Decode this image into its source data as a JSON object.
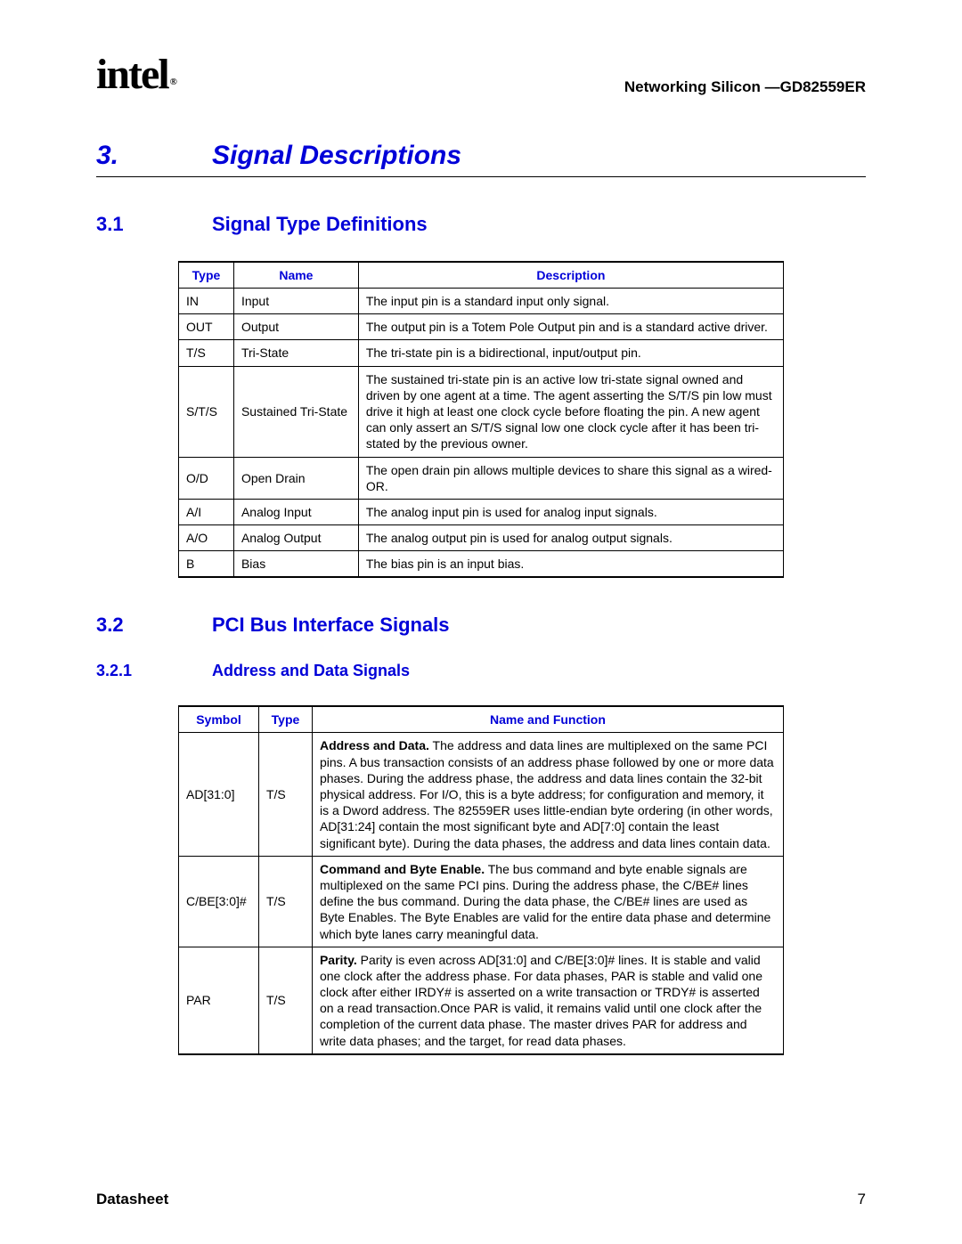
{
  "header": {
    "logo_text": "intel",
    "logo_reg": "®",
    "doc_title": "Networking Silicon —GD82559ER"
  },
  "chapter": {
    "num": "3.",
    "title": "Signal Descriptions"
  },
  "section1": {
    "num": "3.1",
    "title": "Signal Type Definitions"
  },
  "section2": {
    "num": "3.2",
    "title": "PCI Bus Interface Signals"
  },
  "subsection21": {
    "num": "3.2.1",
    "title": "Address and Data Signals"
  },
  "table1": {
    "headers": [
      "Type",
      "Name",
      "Description"
    ],
    "rows": [
      [
        "IN",
        "Input",
        "The input pin is a standard input only signal."
      ],
      [
        "OUT",
        "Output",
        "The output pin is a Totem Pole Output pin and is a standard active driver."
      ],
      [
        "T/S",
        "Tri-State",
        "The tri-state pin is a bidirectional, input/output pin."
      ],
      [
        "S/T/S",
        "Sustained Tri-State",
        "The sustained tri-state pin is an active low tri-state signal owned and driven by one agent at a time. The agent asserting the S/T/S pin low must drive it high at least one clock cycle before floating the pin. A new agent can only assert an S/T/S signal low one clock cycle after it has been tri-stated by the previous owner."
      ],
      [
        "O/D",
        "Open Drain",
        "The open drain pin allows multiple devices to share this signal as a wired-OR."
      ],
      [
        "A/I",
        "Analog Input",
        "The analog input pin is used for analog input signals."
      ],
      [
        "A/O",
        "Analog Output",
        "The analog output pin is used for analog output signals."
      ],
      [
        "B",
        "Bias",
        "The bias pin is an input bias."
      ]
    ]
  },
  "table2": {
    "headers": [
      "Symbol",
      "Type",
      "Name and Function"
    ],
    "rows": [
      {
        "symbol": "AD[31:0]",
        "type": "T/S",
        "bold": "Address and Data.",
        "text": " The address and data lines are multiplexed on the same PCI pins. A bus transaction consists of an address phase followed by one or more data phases. During the address phase, the address and data lines contain the 32-bit physical address. For I/O, this is a byte address; for configuration and memory, it is a Dword address. The 82559ER uses little-endian byte ordering (in other words, AD[31:24] contain the most significant byte and AD[7:0] contain the least significant byte). During the data phases, the address and data lines contain data."
      },
      {
        "symbol": "C/BE[3:0]#",
        "type": "T/S",
        "bold": "Command and Byte Enable.",
        "text": " The bus command and byte enable signals are multiplexed on the same PCI pins. During the address phase, the C/BE# lines define the bus command. During the data phase, the C/BE# lines are used as Byte Enables. The Byte Enables are valid for the entire data phase and determine which byte lanes carry meaningful data."
      },
      {
        "symbol": "PAR",
        "type": "T/S",
        "bold": "Parity.",
        "text": " Parity is even across AD[31:0] and C/BE[3:0]# lines. It is stable and valid one clock after the address phase. For data phases, PAR is stable and valid one clock after either IRDY# is asserted on a write transaction or TRDY# is asserted on a read transaction.Once PAR is valid, it remains valid until one clock after the completion of the current data phase. The master drives PAR for address and write data phases; and the target, for read data phases."
      }
    ]
  },
  "footer": {
    "label": "Datasheet",
    "page": "7"
  },
  "colors": {
    "heading_blue": "#0000d8",
    "text_black": "#000000",
    "background": "#ffffff"
  }
}
